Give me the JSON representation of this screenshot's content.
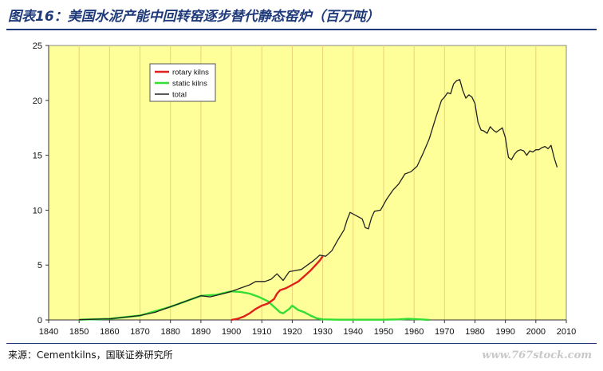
{
  "header": {
    "title": "图表16：美国水泥产能中回转窑逐步替代静态窑炉（百万吨）"
  },
  "footer": {
    "source": "来源：Cementkilns，国联证券研究所",
    "watermark": "www.767stock.com"
  },
  "colors": {
    "plot_bg": "#ffff99",
    "grid": "#e8d27a",
    "rotary": "#e0201b",
    "static": "#33dd33",
    "total": "#222222",
    "title": "#1f3a7a"
  },
  "chart_data": {
    "type": "line",
    "title": "",
    "xlabel": "",
    "ylabel": "",
    "xlim": [
      1840,
      2010
    ],
    "ylim": [
      0,
      25
    ],
    "x_ticks": [
      1840,
      1850,
      1860,
      1870,
      1880,
      1890,
      1900,
      1910,
      1920,
      1930,
      1940,
      1950,
      1960,
      1970,
      1980,
      1990,
      2000,
      2010
    ],
    "y_ticks": [
      0,
      5,
      10,
      15,
      20,
      25
    ],
    "grid": "vertical",
    "legend_position": "top-left",
    "series": [
      {
        "name": "rotary kilns",
        "color": "#e0201b",
        "points": [
          [
            1900,
            0.0
          ],
          [
            1902,
            0.1
          ],
          [
            1904,
            0.3
          ],
          [
            1906,
            0.6
          ],
          [
            1908,
            1.0
          ],
          [
            1910,
            1.3
          ],
          [
            1912,
            1.5
          ],
          [
            1914,
            1.9
          ],
          [
            1915,
            2.4
          ],
          [
            1916,
            2.7
          ],
          [
            1918,
            2.9
          ],
          [
            1920,
            3.2
          ],
          [
            1922,
            3.5
          ],
          [
            1924,
            4.0
          ],
          [
            1926,
            4.5
          ],
          [
            1928,
            5.1
          ],
          [
            1929,
            5.4
          ],
          [
            1930,
            5.8
          ]
        ]
      },
      {
        "name": "static kilns",
        "color": "#33dd33",
        "points": [
          [
            1850,
            0.02
          ],
          [
            1860,
            0.1
          ],
          [
            1870,
            0.4
          ],
          [
            1880,
            1.2
          ],
          [
            1885,
            1.7
          ],
          [
            1890,
            2.2
          ],
          [
            1895,
            2.3
          ],
          [
            1900,
            2.6
          ],
          [
            1903,
            2.55
          ],
          [
            1906,
            2.4
          ],
          [
            1909,
            2.1
          ],
          [
            1912,
            1.7
          ],
          [
            1914,
            1.2
          ],
          [
            1916,
            0.7
          ],
          [
            1917,
            0.6
          ],
          [
            1919,
            1.0
          ],
          [
            1920,
            1.3
          ],
          [
            1922,
            0.9
          ],
          [
            1924,
            0.7
          ],
          [
            1926,
            0.4
          ],
          [
            1928,
            0.15
          ],
          [
            1930,
            0.05
          ],
          [
            1935,
            0.02
          ],
          [
            1950,
            0.02
          ],
          [
            1955,
            0.05
          ],
          [
            1958,
            0.1
          ],
          [
            1962,
            0.05
          ],
          [
            1965,
            0.0
          ]
        ]
      },
      {
        "name": "total",
        "color": "#222222",
        "points": [
          [
            1850,
            0.02
          ],
          [
            1860,
            0.1
          ],
          [
            1870,
            0.4
          ],
          [
            1875,
            0.7
          ],
          [
            1880,
            1.2
          ],
          [
            1883,
            1.5
          ],
          [
            1886,
            1.8
          ],
          [
            1890,
            2.2
          ],
          [
            1893,
            2.1
          ],
          [
            1896,
            2.3
          ],
          [
            1900,
            2.6
          ],
          [
            1903,
            2.9
          ],
          [
            1906,
            3.2
          ],
          [
            1908,
            3.5
          ],
          [
            1911,
            3.5
          ],
          [
            1913,
            3.7
          ],
          [
            1915,
            4.2
          ],
          [
            1917,
            3.6
          ],
          [
            1919,
            4.4
          ],
          [
            1921,
            4.5
          ],
          [
            1923,
            4.6
          ],
          [
            1925,
            5.0
          ],
          [
            1927,
            5.4
          ],
          [
            1929,
            5.9
          ],
          [
            1931,
            5.8
          ],
          [
            1933,
            6.3
          ],
          [
            1935,
            7.3
          ],
          [
            1937,
            8.2
          ],
          [
            1938,
            9.1
          ],
          [
            1939,
            9.8
          ],
          [
            1941,
            9.5
          ],
          [
            1943,
            9.2
          ],
          [
            1944,
            8.4
          ],
          [
            1945,
            8.3
          ],
          [
            1946,
            9.3
          ],
          [
            1947,
            9.9
          ],
          [
            1949,
            10.0
          ],
          [
            1951,
            11.0
          ],
          [
            1953,
            11.8
          ],
          [
            1955,
            12.4
          ],
          [
            1957,
            13.3
          ],
          [
            1959,
            13.5
          ],
          [
            1961,
            14.0
          ],
          [
            1963,
            15.2
          ],
          [
            1965,
            16.5
          ],
          [
            1967,
            18.3
          ],
          [
            1969,
            20.0
          ],
          [
            1970,
            20.3
          ],
          [
            1971,
            20.7
          ],
          [
            1972,
            20.6
          ],
          [
            1973,
            21.5
          ],
          [
            1974,
            21.8
          ],
          [
            1975,
            21.9
          ],
          [
            1976,
            20.9
          ],
          [
            1977,
            20.2
          ],
          [
            1978,
            20.5
          ],
          [
            1979,
            20.3
          ],
          [
            1980,
            19.7
          ],
          [
            1981,
            18.0
          ],
          [
            1982,
            17.3
          ],
          [
            1983,
            17.2
          ],
          [
            1984,
            17.0
          ],
          [
            1985,
            17.6
          ],
          [
            1986,
            17.3
          ],
          [
            1987,
            17.1
          ],
          [
            1988,
            17.3
          ],
          [
            1989,
            17.5
          ],
          [
            1990,
            16.6
          ],
          [
            1991,
            14.8
          ],
          [
            1992,
            14.6
          ],
          [
            1993,
            15.1
          ],
          [
            1994,
            15.4
          ],
          [
            1995,
            15.5
          ],
          [
            1996,
            15.4
          ],
          [
            1997,
            15.0
          ],
          [
            1998,
            15.4
          ],
          [
            1999,
            15.3
          ],
          [
            2000,
            15.5
          ],
          [
            2001,
            15.5
          ],
          [
            2002,
            15.7
          ],
          [
            2003,
            15.8
          ],
          [
            2004,
            15.6
          ],
          [
            2005,
            15.9
          ],
          [
            2006,
            14.8
          ],
          [
            2007,
            13.9
          ]
        ]
      }
    ]
  }
}
